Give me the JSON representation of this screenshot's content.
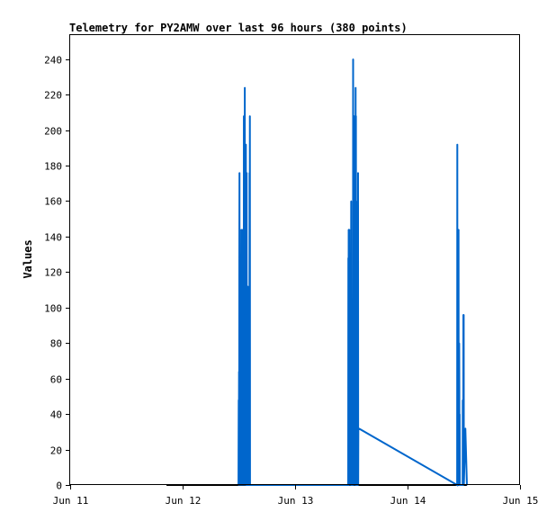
{
  "chart_data": {
    "type": "line",
    "title": "Telemetry for PY2AMW over last 96 hours (380 points)",
    "xlabel": "",
    "ylabel": "Values",
    "x_unit": "date-time (month day, hour)",
    "xlim": [
      "Jun 11 00:00",
      "Jun 15 00:00"
    ],
    "ylim": [
      0,
      254
    ],
    "x_ticks": [
      "Jun 11",
      "Jun 12",
      "Jun 13",
      "Jun 14",
      "Jun 15"
    ],
    "y_ticks": [
      0,
      20,
      40,
      60,
      80,
      100,
      120,
      140,
      160,
      180,
      200,
      220,
      240
    ],
    "grid": false,
    "legend": "none",
    "colors": {
      "line": "#0066cc",
      "baseline": "#000000",
      "frame": "#000000"
    },
    "series": [
      {
        "color": "#0066cc",
        "points": [
          [
            "Jun 12 11:55",
            0
          ],
          [
            "Jun 12 11:58",
            48
          ],
          [
            "Jun 12 12:00",
            0
          ],
          [
            "Jun 12 12:02",
            64
          ],
          [
            "Jun 12 12:04",
            0
          ],
          [
            "Jun 12 12:06",
            128
          ],
          [
            "Jun 12 12:08",
            176
          ],
          [
            "Jun 12 12:10",
            0
          ],
          [
            "Jun 12 12:12",
            64
          ],
          [
            "Jun 12 12:14",
            40
          ],
          [
            "Jun 12 12:16",
            112
          ],
          [
            "Jun 12 12:18",
            0
          ],
          [
            "Jun 12 12:20",
            64
          ],
          [
            "Jun 12 12:22",
            0
          ],
          [
            "Jun 12 12:24",
            56
          ],
          [
            "Jun 12 12:26",
            96
          ],
          [
            "Jun 12 12:28",
            0
          ],
          [
            "Jun 12 12:30",
            72
          ],
          [
            "Jun 12 12:32",
            144
          ],
          [
            "Jun 12 12:34",
            0
          ],
          [
            "Jun 12 12:36",
            32
          ],
          [
            "Jun 12 12:38",
            0
          ],
          [
            "Jun 12 12:40",
            48
          ],
          [
            "Jun 12 12:42",
            0
          ],
          [
            "Jun 12 12:44",
            96
          ],
          [
            "Jun 12 12:46",
            128
          ],
          [
            "Jun 12 12:48",
            0
          ],
          [
            "Jun 12 12:50",
            144
          ],
          [
            "Jun 12 12:52",
            72
          ],
          [
            "Jun 12 12:54",
            40
          ],
          [
            "Jun 12 12:56",
            0
          ],
          [
            "Jun 12 12:58",
            56
          ],
          [
            "Jun 12 13:00",
            96
          ],
          [
            "Jun 12 13:02",
            0
          ],
          [
            "Jun 12 13:04",
            208
          ],
          [
            "Jun 12 13:06",
            0
          ],
          [
            "Jun 12 13:08",
            104
          ],
          [
            "Jun 12 13:10",
            0
          ],
          [
            "Jun 12 13:12",
            96
          ],
          [
            "Jun 12 13:14",
            32
          ],
          [
            "Jun 12 13:16",
            224
          ],
          [
            "Jun 12 13:18",
            0
          ],
          [
            "Jun 12 13:20",
            128
          ],
          [
            "Jun 12 13:22",
            0
          ],
          [
            "Jun 12 13:24",
            112
          ],
          [
            "Jun 12 13:26",
            96
          ],
          [
            "Jun 12 13:28",
            0
          ],
          [
            "Jun 12 13:30",
            192
          ],
          [
            "Jun 12 13:32",
            0
          ],
          [
            "Jun 12 13:34",
            88
          ],
          [
            "Jun 12 13:36",
            176
          ],
          [
            "Jun 12 13:38",
            0
          ],
          [
            "Jun 12 13:40",
            176
          ],
          [
            "Jun 12 13:42",
            0
          ],
          [
            "Jun 12 13:55",
            0
          ],
          [
            "Jun 12 13:57",
            112
          ],
          [
            "Jun 12 13:59",
            96
          ],
          [
            "Jun 12 14:01",
            0
          ],
          [
            "Jun 12 14:15",
            0
          ],
          [
            "Jun 12 14:17",
            176
          ],
          [
            "Jun 12 14:19",
            0
          ],
          [
            "Jun 12 14:21",
            208
          ],
          [
            "Jun 12 14:23",
            0
          ],
          [
            "Jun 13 11:20",
            0
          ],
          [
            "Jun 13 11:22",
            128
          ],
          [
            "Jun 13 11:24",
            0
          ],
          [
            "Jun 13 11:26",
            144
          ],
          [
            "Jun 13 11:28",
            48
          ],
          [
            "Jun 13 11:30",
            0
          ],
          [
            "Jun 13 11:32",
            112
          ],
          [
            "Jun 13 11:34",
            144
          ],
          [
            "Jun 13 11:36",
            0
          ],
          [
            "Jun 13 11:38",
            16
          ],
          [
            "Jun 13 11:40",
            0
          ],
          [
            "Jun 13 11:42",
            32
          ],
          [
            "Jun 13 11:44",
            0
          ],
          [
            "Jun 13 11:46",
            24
          ],
          [
            "Jun 13 11:48",
            32
          ],
          [
            "Jun 13 11:50",
            0
          ],
          [
            "Jun 13 11:52",
            16
          ],
          [
            "Jun 13 11:54",
            0
          ],
          [
            "Jun 13 11:56",
            80
          ],
          [
            "Jun 13 11:58",
            160
          ],
          [
            "Jun 13 12:00",
            0
          ],
          [
            "Jun 13 12:02",
            24
          ],
          [
            "Jun 13 12:04",
            0
          ],
          [
            "Jun 13 12:15",
            0
          ],
          [
            "Jun 13 12:17",
            16
          ],
          [
            "Jun 13 12:19",
            32
          ],
          [
            "Jun 13 12:21",
            0
          ],
          [
            "Jun 13 12:23",
            240
          ],
          [
            "Jun 13 12:25",
            0
          ],
          [
            "Jun 13 12:27",
            32
          ],
          [
            "Jun 13 12:29",
            0
          ],
          [
            "Jun 13 12:31",
            160
          ],
          [
            "Jun 13 12:33",
            0
          ],
          [
            "Jun 13 12:35",
            104
          ],
          [
            "Jun 13 12:37",
            208
          ],
          [
            "Jun 13 12:39",
            0
          ],
          [
            "Jun 13 12:41",
            72
          ],
          [
            "Jun 13 12:43",
            0
          ],
          [
            "Jun 13 12:45",
            176
          ],
          [
            "Jun 13 12:47",
            88
          ],
          [
            "Jun 13 12:49",
            0
          ],
          [
            "Jun 13 12:51",
            160
          ],
          [
            "Jun 13 12:53",
            0
          ],
          [
            "Jun 13 12:55",
            224
          ],
          [
            "Jun 13 12:57",
            0
          ],
          [
            "Jun 13 12:59",
            208
          ],
          [
            "Jun 13 13:01",
            64
          ],
          [
            "Jun 13 13:03",
            0
          ],
          [
            "Jun 13 13:05",
            160
          ],
          [
            "Jun 13 13:07",
            0
          ],
          [
            "Jun 13 13:20",
            0
          ],
          [
            "Jun 13 13:22",
            48
          ],
          [
            "Jun 13 13:24",
            0
          ],
          [
            "Jun 13 13:26",
            176
          ],
          [
            "Jun 13 13:28",
            0
          ],
          [
            "Jun 13 13:30",
            32
          ],
          [
            "Jun 14 10:35",
            0
          ],
          [
            "Jun 14 10:37",
            192
          ],
          [
            "Jun 14 10:39",
            0
          ],
          [
            "Jun 14 10:41",
            144
          ],
          [
            "Jun 14 10:43",
            0
          ],
          [
            "Jun 14 10:45",
            48
          ],
          [
            "Jun 14 10:47",
            0
          ],
          [
            "Jun 14 10:49",
            32
          ],
          [
            "Jun 14 10:51",
            0
          ],
          [
            "Jun 14 10:53",
            144
          ],
          [
            "Jun 14 10:55",
            0
          ],
          [
            "Jun 14 10:57",
            72
          ],
          [
            "Jun 14 10:59",
            0
          ],
          [
            "Jun 14 11:01",
            80
          ],
          [
            "Jun 14 11:03",
            56
          ],
          [
            "Jun 14 11:05",
            0
          ],
          [
            "Jun 14 11:07",
            40
          ],
          [
            "Jun 14 11:09",
            0
          ],
          [
            "Jun 14 11:11",
            0
          ],
          [
            "Jun 14 11:45",
            0
          ],
          [
            "Jun 14 11:47",
            48
          ],
          [
            "Jun 14 11:49",
            0
          ],
          [
            "Jun 14 11:51",
            48
          ],
          [
            "Jun 14 11:53",
            0
          ],
          [
            "Jun 14 11:55",
            96
          ],
          [
            "Jun 14 11:57",
            0
          ],
          [
            "Jun 14 11:59",
            96
          ],
          [
            "Jun 14 12:01",
            0
          ],
          [
            "Jun 14 12:20",
            32
          ],
          [
            "Jun 14 12:40",
            0
          ]
        ]
      }
    ]
  }
}
